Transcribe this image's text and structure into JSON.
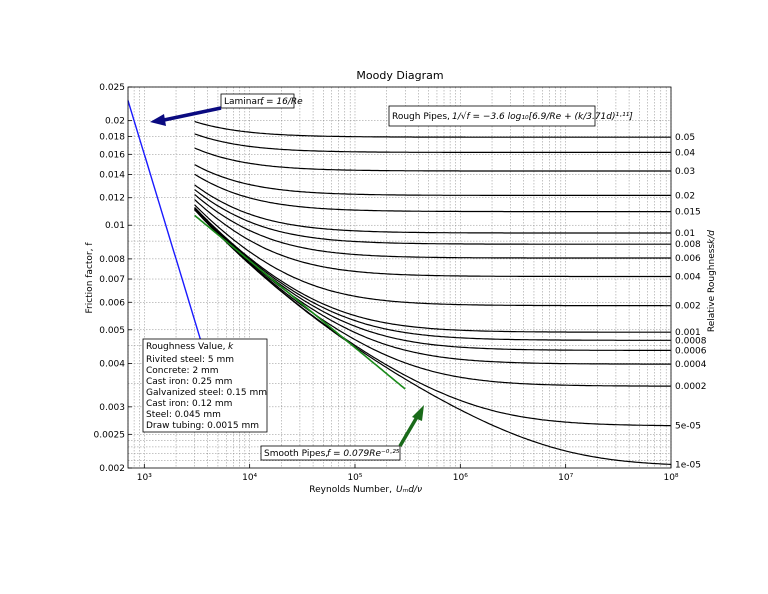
{
  "chart_data": {
    "type": "line",
    "title": "Moody Diagram",
    "xlabel": "Reynolds Number,",
    "xlabel_math": "Uₘd/ν",
    "ylabel": "Friction factor, f",
    "right_label": "Relative Roughness",
    "right_label_math": "k/d",
    "xscale": "log",
    "yscale": "log",
    "xlim": [
      700,
      100000000
    ],
    "ylim": [
      0.002,
      0.025
    ],
    "grid": true,
    "x_ticks": [
      {
        "value": 1000,
        "label": "10³"
      },
      {
        "value": 10000,
        "label": "10⁴"
      },
      {
        "value": 100000,
        "label": "10⁵"
      },
      {
        "value": 1000000,
        "label": "10⁶"
      },
      {
        "value": 10000000,
        "label": "10⁷"
      },
      {
        "value": 100000000,
        "label": "10⁸"
      }
    ],
    "y_ticks": [
      {
        "value": 0.025,
        "label": "0.025"
      },
      {
        "value": 0.02,
        "label": "0.02"
      },
      {
        "value": 0.018,
        "label": "0.018"
      },
      {
        "value": 0.016,
        "label": "0.016"
      },
      {
        "value": 0.014,
        "label": "0.014"
      },
      {
        "value": 0.012,
        "label": "0.012"
      },
      {
        "value": 0.01,
        "label": "0.01"
      },
      {
        "value": 0.008,
        "label": "0.008"
      },
      {
        "value": 0.007,
        "label": "0.007"
      },
      {
        "value": 0.006,
        "label": "0.006"
      },
      {
        "value": 0.005,
        "label": "0.005"
      },
      {
        "value": 0.004,
        "label": "0.004"
      },
      {
        "value": 0.003,
        "label": "0.003"
      },
      {
        "value": 0.0025,
        "label": "0.0025"
      },
      {
        "value": 0.002,
        "label": "0.002"
      }
    ],
    "laminar": {
      "color": "#1a1aff",
      "x_range": [
        700,
        4000
      ]
    },
    "smooth": {
      "color": "#1a8a1a",
      "x_range": [
        3000,
        300000
      ]
    },
    "roughness_series": [
      {
        "label": "0.05",
        "value": 0.05
      },
      {
        "label": "0.04",
        "value": 0.04
      },
      {
        "label": "0.03",
        "value": 0.03
      },
      {
        "label": "0.02",
        "value": 0.02
      },
      {
        "label": "0.015",
        "value": 0.015
      },
      {
        "label": "0.01",
        "value": 0.01
      },
      {
        "label": "0.008",
        "value": 0.008
      },
      {
        "label": "0.006",
        "value": 0.006
      },
      {
        "label": "0.004",
        "value": 0.004
      },
      {
        "label": "0.002",
        "value": 0.002
      },
      {
        "label": "0.001",
        "value": 0.001
      },
      {
        "label": "0.0008",
        "value": 0.0008
      },
      {
        "label": "0.0006",
        "value": 0.0006
      },
      {
        "label": "0.0004",
        "value": 0.0004
      },
      {
        "label": "0.0002",
        "value": 0.0002
      },
      {
        "label": "5e-05",
        "value": 5e-05
      },
      {
        "label": "1e-05",
        "value": 1e-05
      }
    ],
    "annotations": {
      "laminar_label": "Laminar,",
      "laminar_formula": "f = 16/Re",
      "rough_label": "Rough Pipes,",
      "rough_formula": "1/√f = −3.6 log₁₀[6.9/Re + (k/3.71d)¹·¹¹]",
      "smooth_label": "Smooth Pipes,",
      "smooth_formula": "f = 0.079Re⁻⁰·²⁵",
      "roughness_box_title": "Roughness Value,",
      "roughness_box_symbol": "k",
      "roughness_box_lines": [
        "Rivited steel: 5 mm",
        "Concrete: 2 mm",
        "Cast iron: 0.25 mm",
        "Galvanized steel: 0.15 mm",
        "Cast iron: 0.12 mm",
        "Steel: 0.045 mm",
        "Draw tubing: 0.0015 mm"
      ]
    },
    "arrow_color": "#0a0a80",
    "arrow_color_smooth": "#1a6a1a"
  }
}
